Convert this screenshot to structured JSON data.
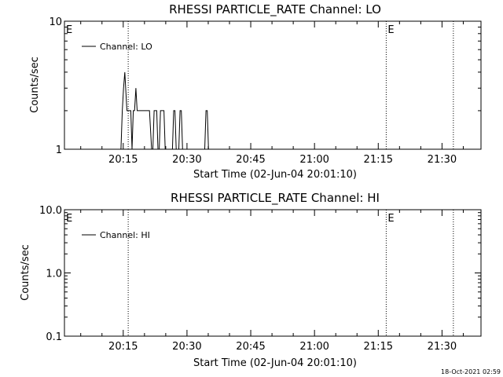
{
  "chart_data": [
    {
      "type": "line",
      "title": "RHESSI  PARTICLE_RATE  Channel:  LO",
      "xlabel": "Start Time (02-Jun-04 20:01:10)",
      "ylabel": "Counts/sec",
      "x_tick_labels": [
        "20:15",
        "20:30",
        "20:45",
        "21:00",
        "21:15",
        "21:30"
      ],
      "x_tick_minutes": [
        13.83,
        28.83,
        43.83,
        58.83,
        73.83,
        88.83
      ],
      "xlim_minutes": [
        0,
        98
      ],
      "y_scale": "log",
      "ylim": [
        1,
        10
      ],
      "y_tick_labels": [
        "1",
        "10"
      ],
      "legend": {
        "location": "top-left",
        "entries": [
          "Channel: LO"
        ]
      },
      "markers": [
        {
          "label": "E",
          "x_minutes": 0
        },
        {
          "label": "",
          "x_minutes": 15.0
        },
        {
          "label": "E",
          "x_minutes": 75.7
        },
        {
          "label": "",
          "x_minutes": 91.5
        }
      ],
      "series": [
        {
          "name": "Channel: LO",
          "x": [
            0,
            13.3,
            13.6,
            13.9,
            14.2,
            14.4,
            14.7,
            15.0,
            15.6,
            15.9,
            16.2,
            16.5,
            16.8,
            17.1,
            17.4,
            17.7,
            18.0,
            18.3,
            20.0,
            20.5,
            20.8,
            21.1,
            21.7,
            22.0,
            22.3,
            22.6,
            23.4,
            23.7,
            24.0,
            24.3,
            25.4,
            25.7,
            26.0,
            26.3,
            26.9,
            27.2,
            27.5,
            27.8,
            33.0,
            33.3,
            33.6,
            33.9,
            98
          ],
          "y": [
            1,
            1,
            2,
            3,
            4,
            3,
            2,
            2,
            2,
            1,
            2,
            2,
            3,
            2,
            2,
            2,
            2,
            2,
            2,
            1,
            1,
            2,
            2,
            1,
            1,
            2,
            2,
            1,
            1,
            1,
            1,
            2,
            2,
            1,
            1,
            2,
            2,
            1,
            1,
            2,
            2,
            1,
            1
          ]
        }
      ]
    },
    {
      "type": "line",
      "title": "RHESSI  PARTICLE_RATE  Channel:  HI",
      "xlabel": "Start Time (02-Jun-04 20:01:10)",
      "ylabel": "Counts/sec",
      "x_tick_labels": [
        "20:15",
        "20:30",
        "20:45",
        "21:00",
        "21:15",
        "21:30"
      ],
      "x_tick_minutes": [
        13.83,
        28.83,
        43.83,
        58.83,
        73.83,
        88.83
      ],
      "xlim_minutes": [
        0,
        98
      ],
      "y_scale": "log",
      "ylim": [
        0.1,
        10
      ],
      "y_tick_labels": [
        "0.1",
        "1.0",
        "10.0"
      ],
      "legend": {
        "location": "top-left",
        "entries": [
          "Channel: HI"
        ]
      },
      "markers": [
        {
          "label": "E",
          "x_minutes": 0
        },
        {
          "label": "",
          "x_minutes": 15.0
        },
        {
          "label": "E",
          "x_minutes": 75.7
        },
        {
          "label": "",
          "x_minutes": 91.5
        }
      ],
      "series": [
        {
          "name": "Channel: HI",
          "x": [],
          "y": []
        }
      ]
    }
  ],
  "footer": {
    "timestamp": "18-Oct-2021 02:59"
  }
}
